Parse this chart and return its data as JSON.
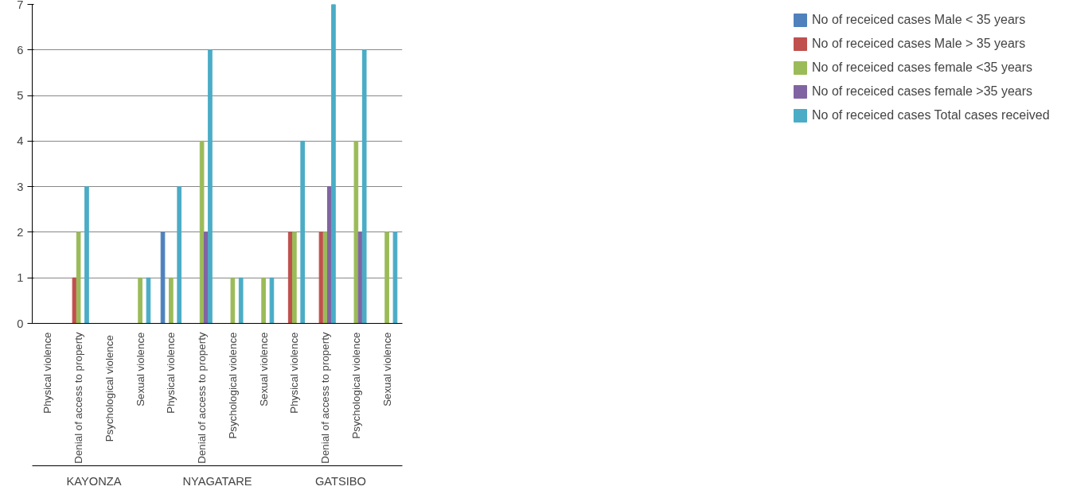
{
  "chart_data": {
    "type": "bar",
    "categories": [
      "Physical violence",
      "Denial of access to property",
      "Psychological  violence",
      "Sexual violence",
      "Physical violence",
      "Denial of access to property",
      "Psychological violence",
      "Sexual violence",
      "Physical violence",
      "Denial of access to property",
      "Psychological violence",
      "Sexual violence"
    ],
    "annotations": [
      "KAYONZA",
      "NYAGATARE",
      "GATSIBO"
    ],
    "series": [
      {
        "name": "No of receiced cases Male < 35 years",
        "color": "#4f81bd",
        "values": [
          null,
          null,
          null,
          null,
          2,
          0,
          0,
          0,
          0,
          0,
          null,
          null
        ]
      },
      {
        "name": "No of receiced cases Male > 35 years",
        "color": "#c0504d",
        "values": [
          null,
          1,
          null,
          null,
          0,
          0,
          0,
          0,
          2,
          2,
          null,
          null
        ]
      },
      {
        "name": "No of receiced cases female <35 years",
        "color": "#9bbb59",
        "values": [
          null,
          2,
          null,
          1,
          1,
          4,
          1,
          1,
          2,
          2,
          4,
          2
        ]
      },
      {
        "name": "No of receiced cases female >35 years",
        "color": "#8064a2",
        "values": [
          null,
          null,
          null,
          null,
          null,
          2,
          0,
          0,
          0,
          3,
          2,
          null
        ]
      },
      {
        "name": "No of receiced cases Total cases received",
        "color": "#4bacc6",
        "values": [
          null,
          3,
          null,
          1,
          3,
          6,
          1,
          1,
          4,
          7,
          6,
          2
        ]
      }
    ],
    "ylim": [
      0,
      7
    ],
    "yticks": [
      0,
      1,
      2,
      3,
      4,
      5,
      6,
      7
    ],
    "grid": "y",
    "legend": "right"
  }
}
